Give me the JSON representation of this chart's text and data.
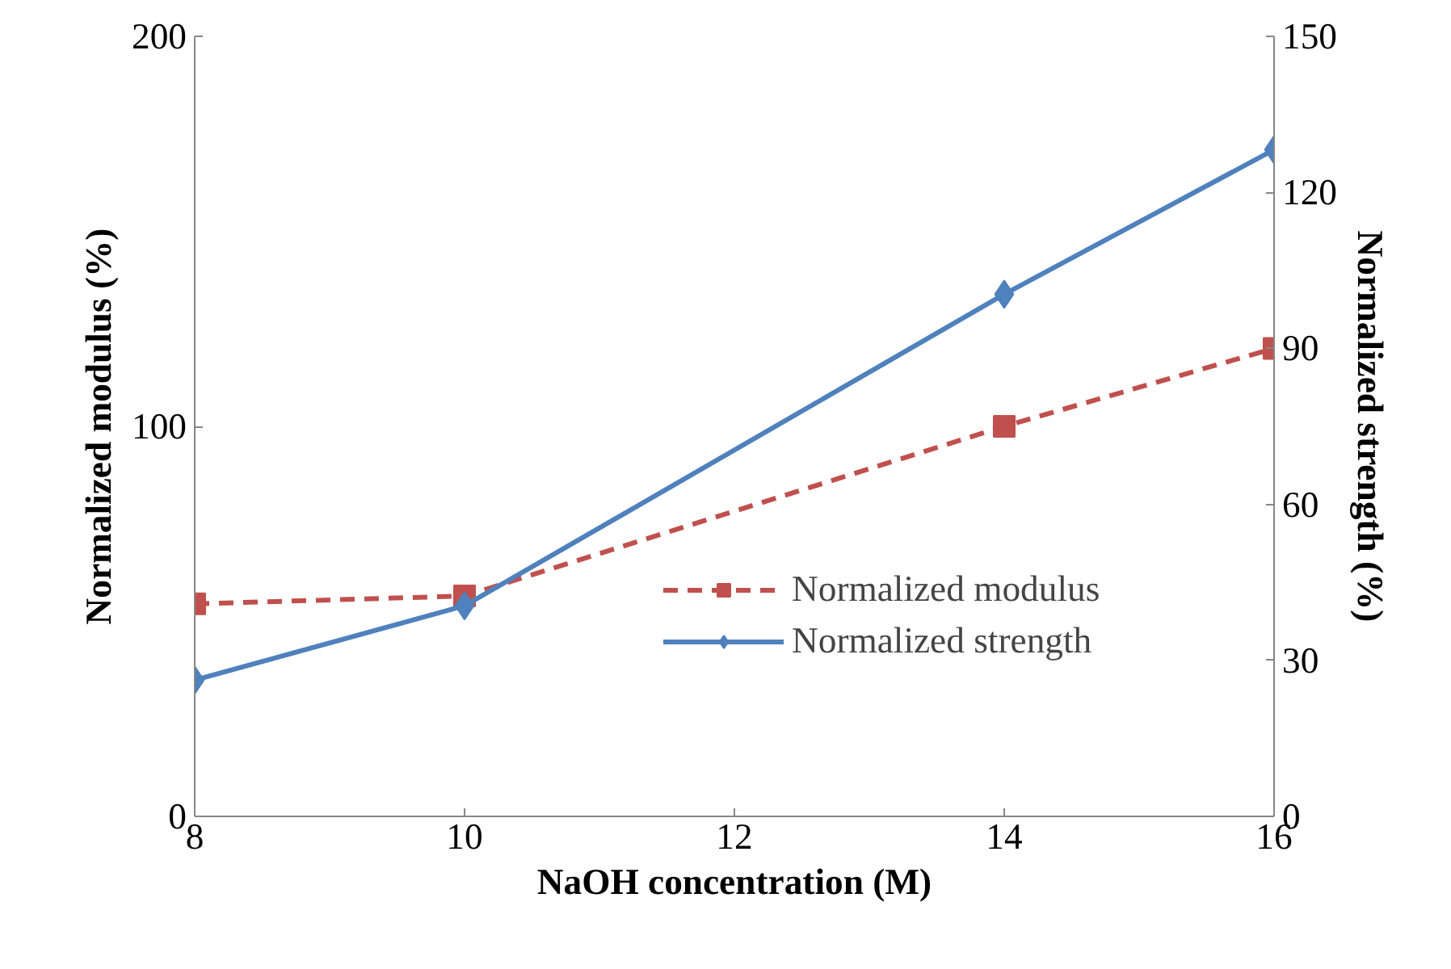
{
  "chart_data": {
    "type": "line",
    "xlabel": "NaOH concentration (M)",
    "ylabel": "Normalized modulus (%)",
    "y2label": "Normalized strength (%)",
    "x": [
      8,
      10,
      14,
      16
    ],
    "xlim": [
      8,
      16
    ],
    "xticks": [
      8,
      10,
      12,
      14,
      16
    ],
    "ylim": [
      0,
      200
    ],
    "yticks": [
      0,
      100,
      200
    ],
    "y2lim": [
      0,
      150
    ],
    "y2ticks": [
      0,
      30,
      60,
      90,
      120,
      150
    ],
    "grid": false,
    "legend": "right",
    "series": [
      {
        "name": "Normalized modulus",
        "color": "#c0504d",
        "values": [
          54.5,
          56.5,
          100,
          120
        ],
        "marker": "square",
        "line_style": "dashed"
      },
      {
        "name": "Normalized strength",
        "color": "#4f81bd",
        "values": [
          26.2,
          40.5,
          100.4,
          128.2
        ],
        "marker": "diamond",
        "line_style": "solid",
        "axis": "y2"
      }
    ]
  }
}
